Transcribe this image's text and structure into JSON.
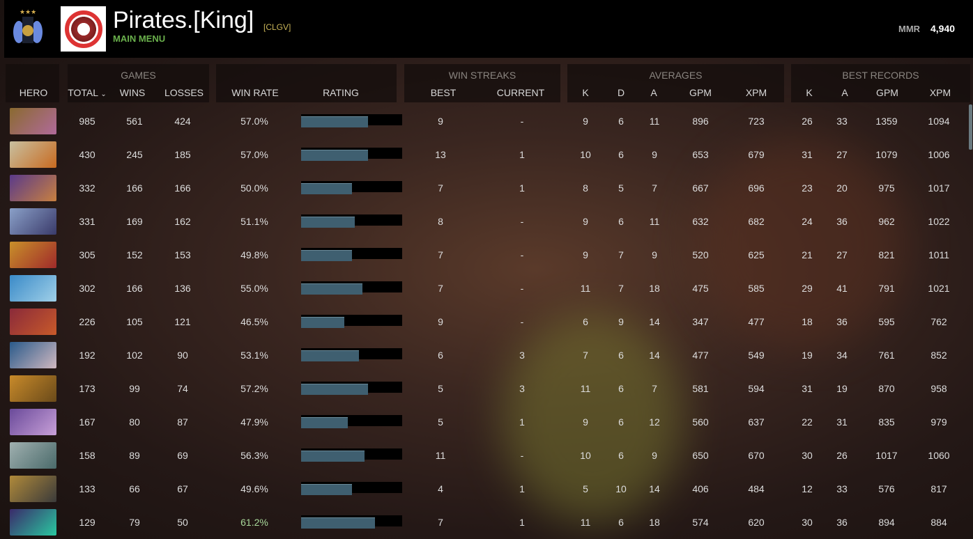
{
  "header": {
    "player_name": "Pirates.[King]",
    "team_tag": "[CLGV]",
    "main_menu": "MAIN MENU",
    "mmr_label": "MMR",
    "mmr_value": "4,940"
  },
  "groups": {
    "games": "GAMES",
    "win_streaks": "WIN STREAKS",
    "averages": "AVERAGES",
    "best_records": "BEST RECORDS"
  },
  "columns": {
    "hero": "HERO",
    "total": "TOTAL",
    "wins": "WINS",
    "losses": "LOSSES",
    "win_rate": "WIN RATE",
    "rating": "RATING",
    "best": "BEST",
    "current": "CURRENT",
    "k": "K",
    "d": "D",
    "a": "A",
    "gpm": "GPM",
    "xpm": "XPM",
    "best_k": "K",
    "best_a": "A",
    "best_gpm": "GPM",
    "best_xpm": "XPM"
  },
  "sort": {
    "column": "total",
    "icon": "chevron-down-icon"
  },
  "colors": {
    "rating_fill": "#3f5f70",
    "highlight_winrate": "#a8d89a"
  },
  "rows": [
    {
      "total": "985",
      "wins": "561",
      "losses": "424",
      "win_rate": "57.0%",
      "rating": 0.66,
      "best": "9",
      "current": "-",
      "k": "9",
      "d": "6",
      "a": "11",
      "gpm": "896",
      "xpm": "723",
      "best_k": "26",
      "best_a": "33",
      "best_gpm": "1359",
      "best_xpm": "1094",
      "hero_colors": [
        "#8a6a30",
        "#b06a9a"
      ]
    },
    {
      "total": "430",
      "wins": "245",
      "losses": "185",
      "win_rate": "57.0%",
      "rating": 0.66,
      "best": "13",
      "current": "1",
      "k": "10",
      "d": "6",
      "a": "9",
      "gpm": "653",
      "xpm": "679",
      "best_k": "31",
      "best_a": "27",
      "best_gpm": "1079",
      "best_xpm": "1006",
      "hero_colors": [
        "#c8c0a0",
        "#c86a20"
      ]
    },
    {
      "total": "332",
      "wins": "166",
      "losses": "166",
      "win_rate": "50.0%",
      "rating": 0.5,
      "best": "7",
      "current": "1",
      "k": "8",
      "d": "5",
      "a": "7",
      "gpm": "667",
      "xpm": "696",
      "best_k": "23",
      "best_a": "20",
      "best_gpm": "975",
      "best_xpm": "1017",
      "hero_colors": [
        "#5a3a8a",
        "#c88040"
      ]
    },
    {
      "total": "331",
      "wins": "169",
      "losses": "162",
      "win_rate": "51.1%",
      "rating": 0.53,
      "best": "8",
      "current": "-",
      "k": "9",
      "d": "6",
      "a": "11",
      "gpm": "632",
      "xpm": "682",
      "best_k": "24",
      "best_a": "36",
      "best_gpm": "962",
      "best_xpm": "1022",
      "hero_colors": [
        "#8aa0c8",
        "#3a3a6a"
      ]
    },
    {
      "total": "305",
      "wins": "152",
      "losses": "153",
      "win_rate": "49.8%",
      "rating": 0.5,
      "best": "7",
      "current": "-",
      "k": "9",
      "d": "7",
      "a": "9",
      "gpm": "520",
      "xpm": "625",
      "best_k": "21",
      "best_a": "27",
      "best_gpm": "821",
      "best_xpm": "1011",
      "hero_colors": [
        "#c8902a",
        "#a02a2a"
      ]
    },
    {
      "total": "302",
      "wins": "166",
      "losses": "136",
      "win_rate": "55.0%",
      "rating": 0.61,
      "best": "7",
      "current": "-",
      "k": "11",
      "d": "7",
      "a": "18",
      "gpm": "475",
      "xpm": "585",
      "best_k": "29",
      "best_a": "41",
      "best_gpm": "791",
      "best_xpm": "1021",
      "hero_colors": [
        "#3a8ac8",
        "#a0d0e8"
      ]
    },
    {
      "total": "226",
      "wins": "105",
      "losses": "121",
      "win_rate": "46.5%",
      "rating": 0.43,
      "best": "9",
      "current": "-",
      "k": "6",
      "d": "9",
      "a": "14",
      "gpm": "347",
      "xpm": "477",
      "best_k": "18",
      "best_a": "36",
      "best_gpm": "595",
      "best_xpm": "762",
      "hero_colors": [
        "#8a2a3a",
        "#c85a2a"
      ]
    },
    {
      "total": "192",
      "wins": "102",
      "losses": "90",
      "win_rate": "53.1%",
      "rating": 0.57,
      "best": "6",
      "current": "3",
      "k": "7",
      "d": "6",
      "a": "14",
      "gpm": "477",
      "xpm": "549",
      "best_k": "19",
      "best_a": "34",
      "best_gpm": "761",
      "best_xpm": "852",
      "hero_colors": [
        "#2a5a8a",
        "#d0b8c0"
      ]
    },
    {
      "total": "173",
      "wins": "99",
      "losses": "74",
      "win_rate": "57.2%",
      "rating": 0.66,
      "best": "5",
      "current": "3",
      "k": "11",
      "d": "6",
      "a": "7",
      "gpm": "581",
      "xpm": "594",
      "best_k": "31",
      "best_a": "19",
      "best_gpm": "870",
      "best_xpm": "958",
      "hero_colors": [
        "#c88a2a",
        "#6a4a1a"
      ]
    },
    {
      "total": "167",
      "wins": "80",
      "losses": "87",
      "win_rate": "47.9%",
      "rating": 0.46,
      "best": "5",
      "current": "1",
      "k": "9",
      "d": "6",
      "a": "12",
      "gpm": "560",
      "xpm": "637",
      "best_k": "22",
      "best_a": "31",
      "best_gpm": "835",
      "best_xpm": "979",
      "hero_colors": [
        "#6a4a9a",
        "#c8a0d8"
      ]
    },
    {
      "total": "158",
      "wins": "89",
      "losses": "69",
      "win_rate": "56.3%",
      "rating": 0.63,
      "best": "11",
      "current": "-",
      "k": "10",
      "d": "6",
      "a": "9",
      "gpm": "650",
      "xpm": "670",
      "best_k": "30",
      "best_a": "26",
      "best_gpm": "1017",
      "best_xpm": "1060",
      "hero_colors": [
        "#a0b0b0",
        "#4a6a6a"
      ]
    },
    {
      "total": "133",
      "wins": "66",
      "losses": "67",
      "win_rate": "49.6%",
      "rating": 0.5,
      "best": "4",
      "current": "1",
      "k": "5",
      "d": "10",
      "a": "14",
      "gpm": "406",
      "xpm": "484",
      "best_k": "12",
      "best_a": "33",
      "best_gpm": "576",
      "best_xpm": "817",
      "hero_colors": [
        "#b08a3a",
        "#3a3a3a"
      ]
    },
    {
      "total": "129",
      "wins": "79",
      "losses": "50",
      "win_rate": "61.2%",
      "rating": 0.73,
      "best": "7",
      "current": "1",
      "k": "11",
      "d": "6",
      "a": "18",
      "gpm": "574",
      "xpm": "620",
      "best_k": "30",
      "best_a": "36",
      "best_gpm": "894",
      "best_xpm": "884",
      "hero_colors": [
        "#3a2a6a",
        "#2ac8a0"
      ],
      "win_rate_highlight": true
    }
  ]
}
